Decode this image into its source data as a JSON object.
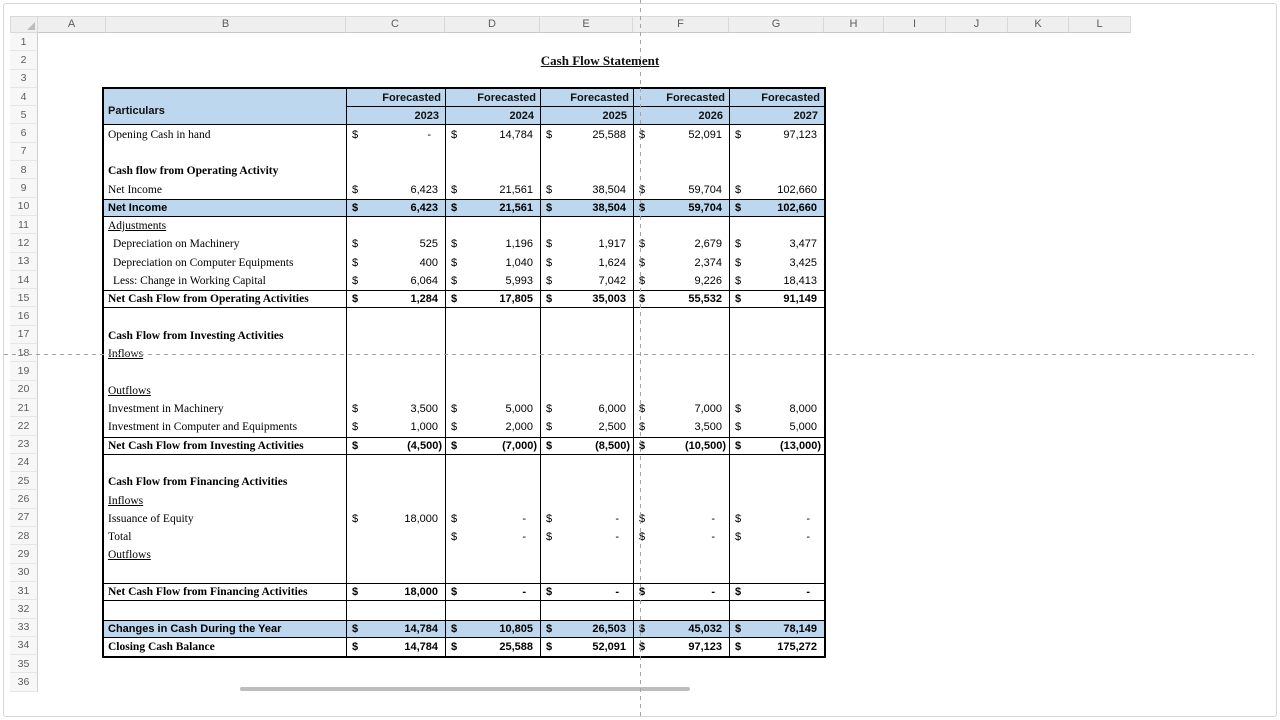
{
  "sheet": {
    "title": "Cash Flow Statement",
    "col_headers": [
      "A",
      "B",
      "C",
      "D",
      "E",
      "F",
      "G",
      "H",
      "I",
      "J",
      "K",
      "L"
    ],
    "visible_rows": 36
  },
  "colors": {
    "header_fill": "#BDD7EE",
    "highlight_fill": "#BDD7EE",
    "table_border": "#000000",
    "page_break_line": "#A3A3A3",
    "chrome_fill": "#EFEFEF",
    "chrome_text": "#5C5C5C"
  },
  "table": {
    "particulars_header": "Particulars",
    "forecast_label": "Forecasted",
    "years": [
      "2023",
      "2024",
      "2025",
      "2026",
      "2027"
    ],
    "currency_symbol": "$",
    "rows": [
      {
        "row": 6,
        "label": "Opening Cash in hand",
        "style": "normal",
        "values": [
          "-",
          "14,784",
          "25,588",
          "52,091",
          "97,123"
        ]
      },
      {
        "row": 7,
        "label": "",
        "style": "blank",
        "values": null
      },
      {
        "row": 8,
        "label": "Cash flow from Operating Activity",
        "style": "section-bold",
        "values": null
      },
      {
        "row": 9,
        "label": "Net Income",
        "style": "normal",
        "values": [
          "6,423",
          "21,561",
          "38,504",
          "59,704",
          "102,660"
        ]
      },
      {
        "row": 10,
        "label": "Net Income",
        "style": "highlight",
        "values": [
          "6,423",
          "21,561",
          "38,504",
          "59,704",
          "102,660"
        ]
      },
      {
        "row": 11,
        "label": "Adjustments",
        "style": "section-underline",
        "values": null
      },
      {
        "row": 12,
        "label": "Depreciation on Machinery",
        "style": "detail",
        "values": [
          "525",
          "1,196",
          "1,917",
          "2,679",
          "3,477"
        ]
      },
      {
        "row": 13,
        "label": "Depreciation on Computer Equipments",
        "style": "detail",
        "values": [
          "400",
          "1,040",
          "1,624",
          "2,374",
          "3,425"
        ]
      },
      {
        "row": 14,
        "label": "Less: Change in Working Capital",
        "style": "detail",
        "values": [
          "6,064",
          "5,993",
          "7,042",
          "9,226",
          "18,413"
        ]
      },
      {
        "row": 15,
        "label": "Net Cash Flow from Operating Activities",
        "style": "total",
        "values": [
          "1,284",
          "17,805",
          "35,003",
          "55,532",
          "91,149"
        ]
      },
      {
        "row": 16,
        "label": "",
        "style": "blank",
        "values": null
      },
      {
        "row": 17,
        "label": "Cash Flow from Investing Activities",
        "style": "section-bold",
        "values": null
      },
      {
        "row": 18,
        "label": "Inflows",
        "style": "section-underline",
        "values": null
      },
      {
        "row": 19,
        "label": "",
        "style": "blank",
        "values": null
      },
      {
        "row": 20,
        "label": "Outflows",
        "style": "section-underline",
        "values": null
      },
      {
        "row": 21,
        "label": "Investment in Machinery",
        "style": "normal",
        "values": [
          "3,500",
          "5,000",
          "6,000",
          "7,000",
          "8,000"
        ]
      },
      {
        "row": 22,
        "label": "Investment in Computer and Equipments",
        "style": "normal",
        "values": [
          "1,000",
          "2,000",
          "2,500",
          "3,500",
          "5,000"
        ]
      },
      {
        "row": 23,
        "label": "Net Cash Flow from Investing Activities",
        "style": "total",
        "values": [
          "(4,500)",
          "(7,000)",
          "(8,500)",
          "(10,500)",
          "(13,000)"
        ]
      },
      {
        "row": 24,
        "label": "",
        "style": "blank",
        "values": null
      },
      {
        "row": 25,
        "label": "Cash Flow from Financing Activities",
        "style": "section-bold",
        "values": null
      },
      {
        "row": 26,
        "label": "Inflows",
        "style": "section-underline",
        "values": null
      },
      {
        "row": 27,
        "label": "Issuance of Equity",
        "style": "normal",
        "values": [
          "18,000",
          "-",
          "-",
          "-",
          "-"
        ]
      },
      {
        "row": 28,
        "label": "Total",
        "style": "normal",
        "values": [
          null,
          "-",
          "-",
          "-",
          "-"
        ]
      },
      {
        "row": 29,
        "label": "Outflows",
        "style": "section-underline",
        "values": null
      },
      {
        "row": 30,
        "label": "",
        "style": "blank",
        "values": null
      },
      {
        "row": 31,
        "label": "Net Cash Flow from Financing Activities",
        "style": "total",
        "values": [
          "18,000",
          "-",
          "-",
          "-",
          "-"
        ]
      },
      {
        "row": 32,
        "label": "",
        "style": "blank",
        "values": null
      },
      {
        "row": 33,
        "label": "Changes in Cash During the Year",
        "style": "highlight",
        "values": [
          "14,784",
          "10,805",
          "26,503",
          "45,032",
          "78,149"
        ]
      },
      {
        "row": 34,
        "label": "Closing Cash Balance",
        "style": "total",
        "values": [
          "14,784",
          "25,588",
          "52,091",
          "97,123",
          "175,272"
        ]
      }
    ]
  }
}
